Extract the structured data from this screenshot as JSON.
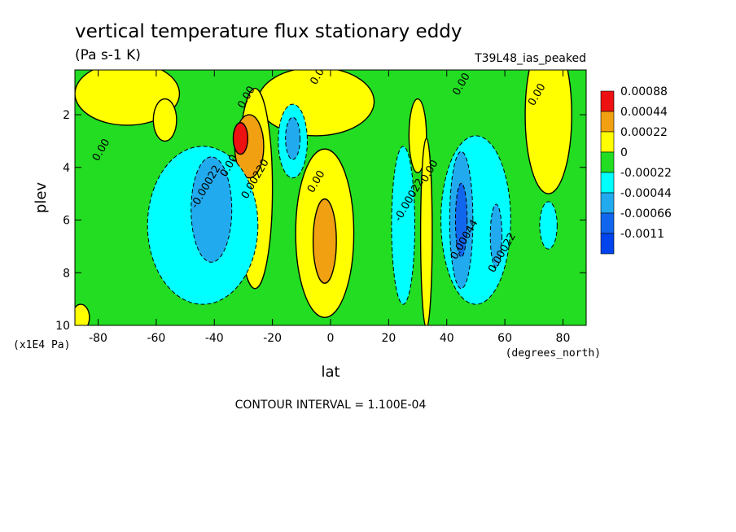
{
  "chart_data": {
    "type": "heatmap",
    "title": "vertical temperature flux stationary eddy",
    "units": "(Pa s-1 K)",
    "dataset": "T39L48_ias_peaked",
    "xlabel": "lat",
    "xunits": "(degrees_north)",
    "ylabel": "plev",
    "yunits": "(x1E4 Pa)",
    "xlim": [
      -88,
      88
    ],
    "ylim": [
      10,
      0.3
    ],
    "xticks": [
      "-80",
      "-60",
      "-40",
      "-20",
      "0",
      "20",
      "40",
      "60",
      "80"
    ],
    "yticks": [
      "2",
      "4",
      "6",
      "8",
      "10"
    ],
    "footnote": "CONTOUR INTERVAL = 1.100E-04",
    "legend": {
      "position": "right",
      "levels": [
        "0.00088",
        "0.00044",
        "0.00022",
        "0",
        "-0.00022",
        "-0.00044",
        "-0.00066",
        "-0.0011"
      ],
      "colors": [
        "#ee1111",
        "#f0a010",
        "#ffff00",
        "#22dd22",
        "#00ffff",
        "#22aaee",
        "#1166ee",
        "#0044ee"
      ]
    },
    "contour_labels": [
      {
        "text": "0.00",
        "lat": -78,
        "plev": 3.4
      },
      {
        "text": "0.00",
        "lat": -28,
        "plev": 1.4
      },
      {
        "text": "0.00",
        "lat": -3,
        "plev": 0.5
      },
      {
        "text": "0.00",
        "lat": 46,
        "plev": 0.9
      },
      {
        "text": "0.00",
        "lat": 72,
        "plev": 1.3
      },
      {
        "text": "0.00",
        "lat": -34,
        "plev": 4.0
      },
      {
        "text": "0.00",
        "lat": -4,
        "plev": 4.6
      },
      {
        "text": "0.00",
        "lat": 35,
        "plev": 4.2
      },
      {
        "text": "-0.00022",
        "lat": -42,
        "plev": 4.8
      },
      {
        "text": "0.00220",
        "lat": -25,
        "plev": 4.5
      },
      {
        "text": "-0.00022",
        "lat": 28,
        "plev": 5.3
      },
      {
        "text": "0.00044",
        "lat": 47,
        "plev": 6.8
      },
      {
        "text": "0.00022",
        "lat": 60,
        "plev": 7.3
      }
    ],
    "regions": [
      {
        "v": 0,
        "lat": -70,
        "plev": 1.2,
        "rx": 18,
        "ry": 1.2
      },
      {
        "v": 0,
        "lat": -5,
        "plev": 1.5,
        "rx": 20,
        "ry": 1.3
      },
      {
        "v": 0,
        "lat": 75,
        "plev": 2.0,
        "rx": 8,
        "ry": 3.0
      },
      {
        "v": 0,
        "lat": -57,
        "plev": 2.2,
        "rx": 4,
        "ry": 0.8
      },
      {
        "v": 0,
        "lat": 30,
        "plev": 2.8,
        "rx": 3,
        "ry": 1.4
      },
      {
        "v": 0,
        "lat": -26,
        "plev": 4.8,
        "rx": 6,
        "ry": 3.8
      },
      {
        "v": 0,
        "lat": -2,
        "plev": 6.5,
        "rx": 10,
        "ry": 3.2
      },
      {
        "v": 0,
        "lat": 33,
        "plev": 6.5,
        "rx": 2,
        "ry": 3.6
      },
      {
        "v": 0,
        "lat": -86,
        "plev": 9.7,
        "rx": 3,
        "ry": 0.5
      },
      {
        "v": 1,
        "lat": -2,
        "plev": 6.8,
        "rx": 4,
        "ry": 1.6
      },
      {
        "v": 1,
        "lat": -28,
        "plev": 3.2,
        "rx": 5,
        "ry": 1.2
      },
      {
        "v": 2,
        "lat": -31,
        "plev": 2.9,
        "rx": 2.5,
        "ry": 0.6
      },
      {
        "v": -1,
        "lat": -44,
        "plev": 6.2,
        "rx": 19,
        "ry": 3.0
      },
      {
        "v": -1,
        "lat": -13,
        "plev": 3.0,
        "rx": 5,
        "ry": 1.4
      },
      {
        "v": -1,
        "lat": 25,
        "plev": 6.2,
        "rx": 4,
        "ry": 3.0
      },
      {
        "v": -1,
        "lat": 50,
        "plev": 6.0,
        "rx": 12,
        "ry": 3.2
      },
      {
        "v": -1,
        "lat": 75,
        "plev": 6.2,
        "rx": 3,
        "ry": 0.9
      },
      {
        "v": -2,
        "lat": -41,
        "plev": 5.6,
        "rx": 7,
        "ry": 2.0
      },
      {
        "v": -2,
        "lat": -13,
        "plev": 2.9,
        "rx": 2.5,
        "ry": 0.8
      },
      {
        "v": -2,
        "lat": 45,
        "plev": 6.0,
        "rx": 4,
        "ry": 2.6
      },
      {
        "v": -2,
        "lat": 57,
        "plev": 6.6,
        "rx": 2,
        "ry": 1.2
      },
      {
        "v": -3,
        "lat": 45,
        "plev": 6.0,
        "rx": 2,
        "ry": 1.4
      }
    ]
  }
}
